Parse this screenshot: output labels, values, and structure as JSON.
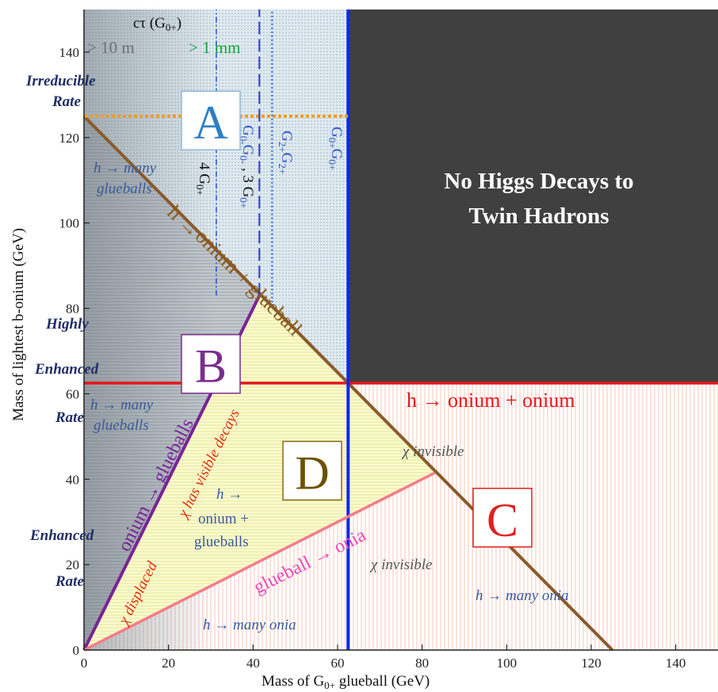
{
  "chart_data": {
    "type": "area",
    "title": "",
    "xlabel_main": "Mass of G",
    "xlabel_sub": "0+",
    "xlabel_end": " glueball  (GeV)",
    "ylabel": "Mass of lightest b-onium (GeV)",
    "xlim": [
      0,
      150
    ],
    "ylim": [
      0,
      150
    ],
    "x_ticks": [
      0,
      20,
      40,
      60,
      80,
      100,
      120,
      140
    ],
    "y_ticks": [
      0,
      20,
      40,
      60,
      80,
      100,
      120,
      140
    ],
    "regions": [
      {
        "label": "A",
        "color": "#2e7fc4",
        "box_color": "#8fb8d8",
        "x": 30,
        "y": 124
      },
      {
        "label": "B",
        "color": "#7a2d8c",
        "box_color": "#7a2d8c",
        "x": 30,
        "y": 67
      },
      {
        "label": "C",
        "color": "#e02020",
        "box_color": "#e02020",
        "x": 99,
        "y": 31
      },
      {
        "label": "D",
        "color": "#6b5200",
        "box_color": "#8a6a10",
        "x": 54,
        "y": 42
      }
    ],
    "lines": [
      {
        "name": "h -> onium + glueball boundary",
        "color": "#8b5a2b",
        "points": [
          [
            0,
            125
          ],
          [
            125,
            0
          ]
        ]
      },
      {
        "name": "h -> onium + onium threshold",
        "color": "#e8141b",
        "points": [
          [
            0,
            62.5
          ],
          [
            150,
            62.5
          ]
        ]
      },
      {
        "name": "G0+G0+ threshold",
        "color": "#0a28e8",
        "points": [
          [
            62.5,
            0
          ],
          [
            62.5,
            150
          ]
        ]
      },
      {
        "name": "onium -> glueballs",
        "color": "#7a2396",
        "points": [
          [
            0,
            0
          ],
          [
            41.5,
            83
          ]
        ]
      },
      {
        "name": "glueball -> onia",
        "color": "#f47c8a",
        "points": [
          [
            0,
            0
          ],
          [
            83,
            41.5
          ]
        ]
      },
      {
        "name": "irreducible rate",
        "color": "#f39c1e",
        "points": [
          [
            0,
            125
          ],
          [
            62.5,
            125
          ]
        ]
      },
      {
        "name": "4 G0+",
        "color": "#2a58c8",
        "points": [
          [
            31.3,
            83
          ],
          [
            31.3,
            150
          ]
        ]
      },
      {
        "name": "G0-G0-, 3 G0+",
        "color": "#2a3ad8",
        "points": [
          [
            41.5,
            83
          ],
          [
            41.5,
            150
          ]
        ]
      },
      {
        "name": "G2+G2+",
        "color": "#2a6ae8",
        "points": [
          [
            44.5,
            80.5
          ],
          [
            44.5,
            150
          ]
        ]
      }
    ],
    "dark_region": {
      "name": "No Higgs Decays to Twin Hadrons",
      "color": "#404040",
      "x": [
        62.5,
        150
      ],
      "y": [
        62.5,
        150
      ]
    },
    "texts": {
      "no_higgs_line1": "No Higgs Decays to",
      "no_higgs_line2": "Twin Hadrons",
      "ctau": "cτ (G",
      "ctau_sub": "0+",
      "ctau_end": ")",
      "ctau_10m": "> 10 m",
      "ctau_1mm": "> 1 mm",
      "irreducible_1": "Irreducible",
      "irreducible_2": "Rate",
      "highly": "Highly",
      "enhanced": "Enhanced",
      "rate": "Rate",
      "enhanced2": "Enhanced",
      "rate2": "Rate",
      "h_many_glueballs_a1": "h → many",
      "h_many_glueballs_a2": "glueballs",
      "h_many_glueballs_b1": "h → many",
      "h_many_glueballs_b2": "glueballs",
      "h_onium_glueball_1": "h  →",
      "h_onium_glueball_2": "onium + glueball",
      "h_onium_onium": "h  →  onium + onium",
      "onium_glueballs": "onium → glueballs",
      "glueball_onia": "glueball → onia",
      "chi_visible": "χ has visible decays",
      "chi_displaced": "χ displaced",
      "chi_invisible_1": "χ  invisible",
      "chi_invisible_2": "χ invisible",
      "h_onium_glueballs_1": "h →",
      "h_onium_glueballs_2": "onium +",
      "h_onium_glueballs_3": "glueballs",
      "h_many_onia_1": "h → many onia",
      "h_many_onia_2": "h → many onia",
      "four_g0": "4 G",
      "four_g0_sub": "0+",
      "g0mg0m_a": "G",
      "g0mg0m_a_sub": "0-",
      "g0mg0m_b": "G",
      "g0mg0m_b_sub": "0-",
      "g0mg0m_c": " , 3 G",
      "g0mg0m_c_sub": "0+",
      "g2g2_a": "G",
      "g2g2_a_sub": "2+",
      "g2g2_b": "G",
      "g2g2_b_sub": "2+",
      "g0g0_a": "G",
      "g0g0_a_sub": "0+",
      "g0g0_b": "G",
      "g0g0_b_sub": "0+"
    }
  }
}
